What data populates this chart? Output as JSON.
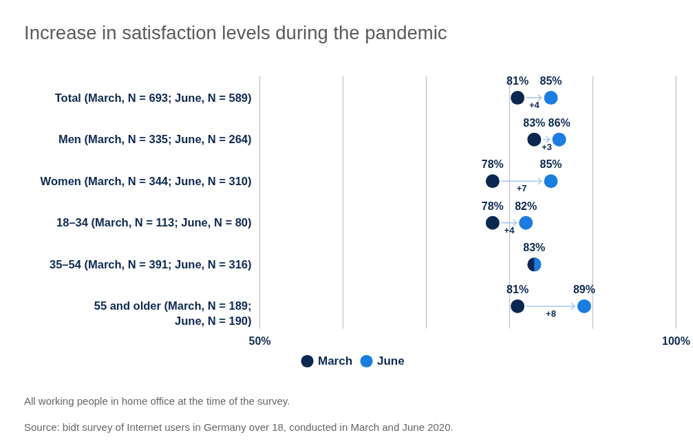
{
  "chart_data": {
    "type": "scatter",
    "orientation": "horizontal",
    "title": "Increase in satisfaction levels during the pandemic",
    "categories": [
      "Total (March, N = 693; June, N = 589)",
      "Men (March, N = 335; June, N = 264)",
      "Women (March, N = 344; June, N = 310)",
      "18–34 (March, N = 113; June, N = 80)",
      "35–54 (March, N = 391; June, N = 316)",
      "55 and older (March, N = 189;\nJune, N = 190)"
    ],
    "series": [
      {
        "name": "March",
        "color": "#0b2850",
        "values": [
          81,
          83,
          78,
          78,
          83,
          81
        ],
        "value_labels": [
          "81%",
          "83%",
          "78%",
          "78%",
          "83%",
          "81%"
        ]
      },
      {
        "name": "June",
        "color": "#1b7ddf",
        "values": [
          85,
          86,
          85,
          82,
          83,
          89
        ],
        "value_labels": [
          "85%",
          "86%",
          "85%",
          "82%",
          null,
          "89%"
        ]
      }
    ],
    "xlim": [
      50,
      100
    ],
    "xticks": [
      {
        "value": 50,
        "label": "50%"
      },
      {
        "value": 60,
        "label": null
      },
      {
        "value": 70,
        "label": null
      },
      {
        "value": 80,
        "label": null
      },
      {
        "value": 90,
        "label": null
      },
      {
        "value": 100,
        "label": "100%"
      }
    ],
    "grid": "x",
    "legend": "bottom",
    "marker": "circle",
    "annotations": [
      "+4",
      "+3",
      "+7",
      "+4",
      "+8",
      "All working people in home office at the time of the survey.",
      "Source: bidt survey of Internet users in Germany over 18, conducted in March and June 2020."
    ]
  }
}
